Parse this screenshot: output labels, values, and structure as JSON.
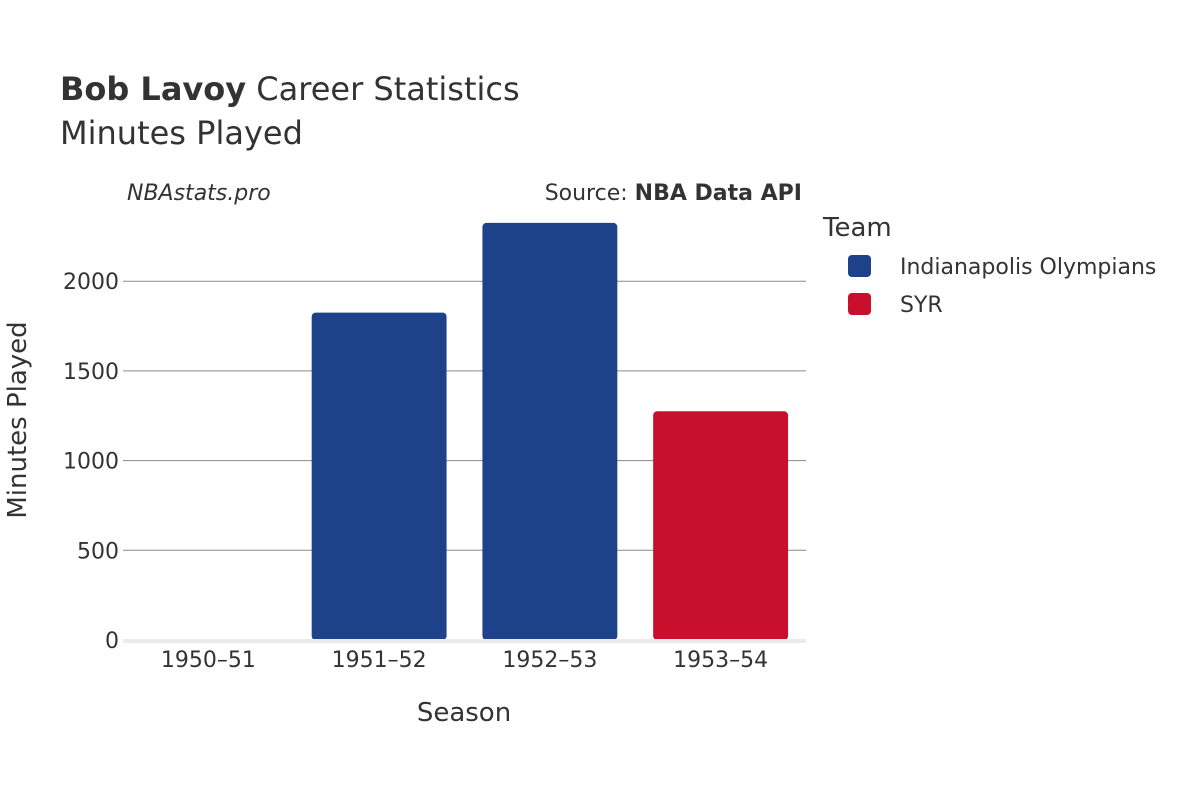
{
  "chart_data": {
    "type": "bar",
    "title": {
      "player": "Bob Lavoy",
      "suffix": " Career Statistics",
      "subtitle": "Minutes Played"
    },
    "watermark": "NBAstats.pro",
    "source": {
      "prefix": "Source: ",
      "name": "NBA Data API"
    },
    "xlabel": "Season",
    "ylabel": "Minutes Played",
    "categories": [
      "1950–51",
      "1951–52",
      "1952–53",
      "1953–54"
    ],
    "ylim": [
      0,
      2330
    ],
    "yticks": [
      0,
      500,
      1000,
      1500,
      2000
    ],
    "ytick_labels": [
      "0",
      "500",
      "1000",
      "1500",
      "2000"
    ],
    "legend": {
      "title": "Team",
      "placement": "right"
    },
    "series": [
      {
        "name": "Indianapolis Olympians",
        "color": "#1d428a",
        "values": [
          4,
          1825,
          2325,
          0
        ]
      },
      {
        "name": "SYR",
        "color": "#c8102e",
        "values": [
          0,
          0,
          0,
          1275
        ]
      }
    ]
  }
}
